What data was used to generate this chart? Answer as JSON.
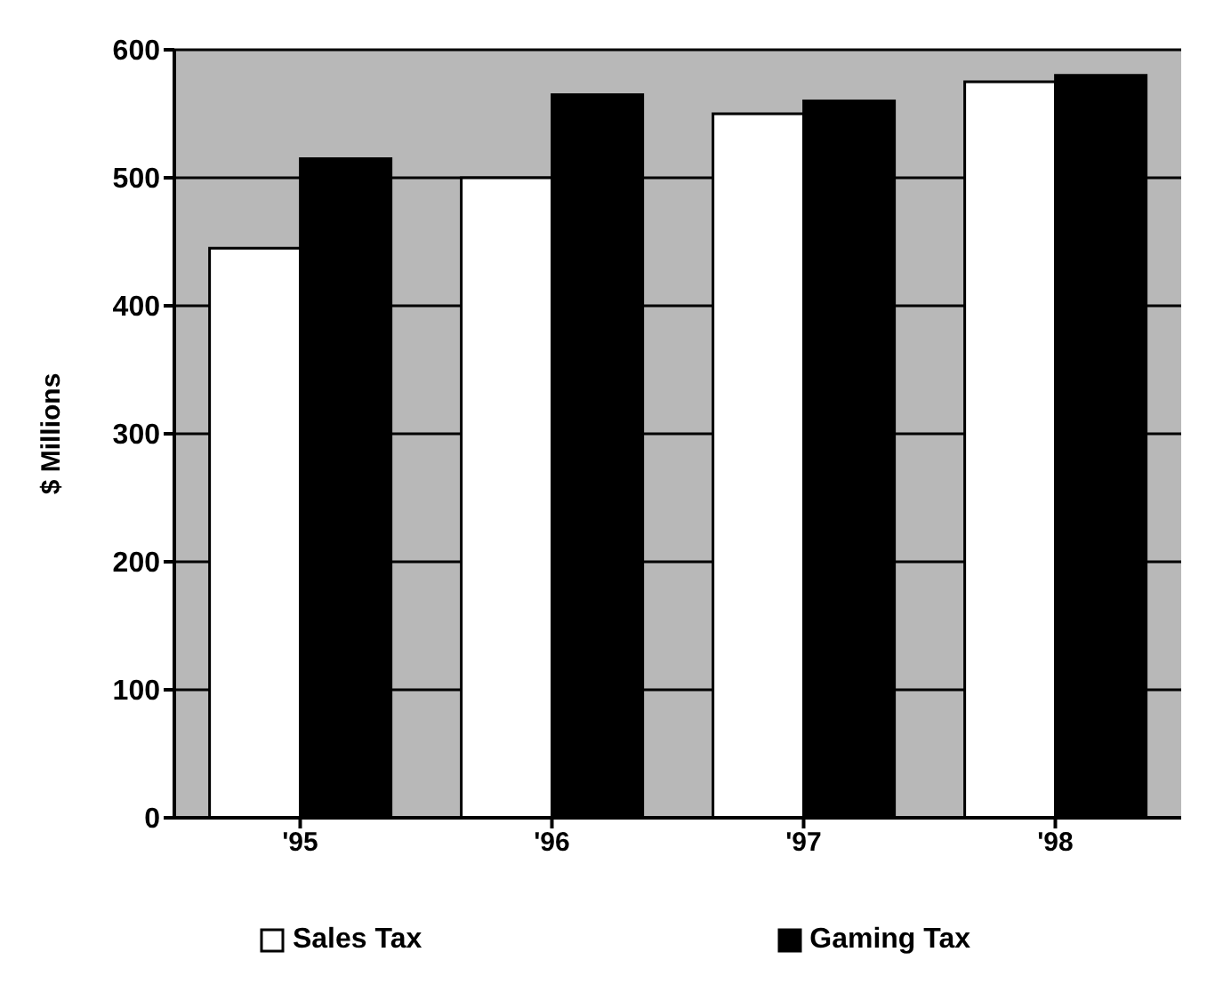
{
  "chart_data": {
    "type": "bar",
    "ylabel": "$ Millions",
    "categories": [
      "'95",
      "'96",
      "'97",
      "'98"
    ],
    "series": [
      {
        "name": "Sales Tax",
        "color": "#ffffff",
        "values": [
          445,
          500,
          550,
          575
        ]
      },
      {
        "name": "Gaming Tax",
        "color": "#000000",
        "values": [
          515,
          565,
          560,
          580
        ]
      }
    ],
    "ylim": [
      0,
      600
    ],
    "yticks": [
      0,
      100,
      200,
      300,
      400,
      500,
      600
    ],
    "grid": "y",
    "legend": "bottom"
  }
}
